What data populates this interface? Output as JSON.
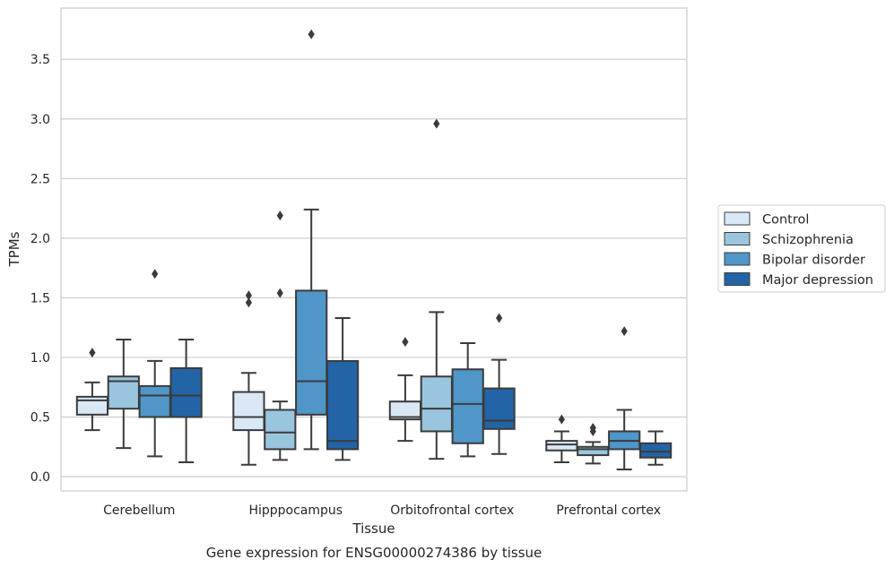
{
  "chart_data": {
    "type": "box",
    "title": "",
    "caption": "Gene expression for ENSG00000274386 by tissue",
    "xlabel": "Tissue",
    "ylabel": "TPMs",
    "ylim": [
      -0.12,
      3.93
    ],
    "yticks": [
      "0.0",
      "0.5",
      "1.0",
      "1.5",
      "2.0",
      "2.5",
      "3.0",
      "3.5"
    ],
    "grid": "horizontal",
    "legend_position": "right",
    "categories": [
      "Cerebellum",
      "Hipppocampus",
      "Orbitofrontal cortex",
      "Prefrontal cortex"
    ],
    "series": [
      {
        "name": "Control",
        "color": "#dae8f5",
        "boxes": [
          {
            "whislo": 0.39,
            "q1": 0.52,
            "med": 0.64,
            "q3": 0.67,
            "whishi": 0.79,
            "fliers": [
              1.04
            ]
          },
          {
            "whislo": 0.1,
            "q1": 0.39,
            "med": 0.5,
            "q3": 0.71,
            "whishi": 0.87,
            "fliers": [
              1.46,
              1.52
            ]
          },
          {
            "whislo": 0.3,
            "q1": 0.48,
            "med": 0.5,
            "q3": 0.63,
            "whishi": 0.85,
            "fliers": [
              1.13
            ]
          },
          {
            "whislo": 0.12,
            "q1": 0.22,
            "med": 0.27,
            "q3": 0.3,
            "whishi": 0.38,
            "fliers": [
              0.48
            ]
          }
        ]
      },
      {
        "name": "Schizophrenia",
        "color": "#9ac5df",
        "boxes": [
          {
            "whislo": 0.24,
            "q1": 0.57,
            "med": 0.8,
            "q3": 0.84,
            "whishi": 1.15,
            "fliers": []
          },
          {
            "whislo": 0.14,
            "q1": 0.23,
            "med": 0.37,
            "q3": 0.56,
            "whishi": 0.63,
            "fliers": [
              1.54,
              2.19
            ]
          },
          {
            "whislo": 0.15,
            "q1": 0.38,
            "med": 0.57,
            "q3": 0.84,
            "whishi": 1.38,
            "fliers": [
              2.96
            ]
          },
          {
            "whislo": 0.11,
            "q1": 0.18,
            "med": 0.23,
            "q3": 0.25,
            "whishi": 0.29,
            "fliers": [
              0.38,
              0.41
            ]
          }
        ]
      },
      {
        "name": "Bipolar disorder",
        "color": "#5096c8",
        "boxes": [
          {
            "whislo": 0.17,
            "q1": 0.5,
            "med": 0.68,
            "q3": 0.76,
            "whishi": 0.97,
            "fliers": [
              1.7
            ]
          },
          {
            "whislo": 0.23,
            "q1": 0.52,
            "med": 0.8,
            "q3": 1.56,
            "whishi": 2.24,
            "fliers": [
              3.71
            ]
          },
          {
            "whislo": 0.17,
            "q1": 0.28,
            "med": 0.61,
            "q3": 0.9,
            "whishi": 1.12,
            "fliers": []
          },
          {
            "whislo": 0.06,
            "q1": 0.23,
            "med": 0.3,
            "q3": 0.38,
            "whishi": 0.56,
            "fliers": [
              1.22
            ]
          }
        ]
      },
      {
        "name": "Major depression",
        "color": "#2364a6",
        "boxes": [
          {
            "whislo": 0.12,
            "q1": 0.5,
            "med": 0.68,
            "q3": 0.91,
            "whishi": 1.15,
            "fliers": []
          },
          {
            "whislo": 0.14,
            "q1": 0.23,
            "med": 0.3,
            "q3": 0.97,
            "whishi": 1.33,
            "fliers": []
          },
          {
            "whislo": 0.19,
            "q1": 0.4,
            "med": 0.47,
            "q3": 0.74,
            "whishi": 0.98,
            "fliers": [
              1.33
            ]
          },
          {
            "whislo": 0.1,
            "q1": 0.16,
            "med": 0.21,
            "q3": 0.28,
            "whishi": 0.38,
            "fliers": []
          }
        ]
      }
    ],
    "style": {
      "line_color": "#3b3b3b",
      "grid_color": "#cccccc",
      "frame_color": "#cccccc"
    }
  }
}
